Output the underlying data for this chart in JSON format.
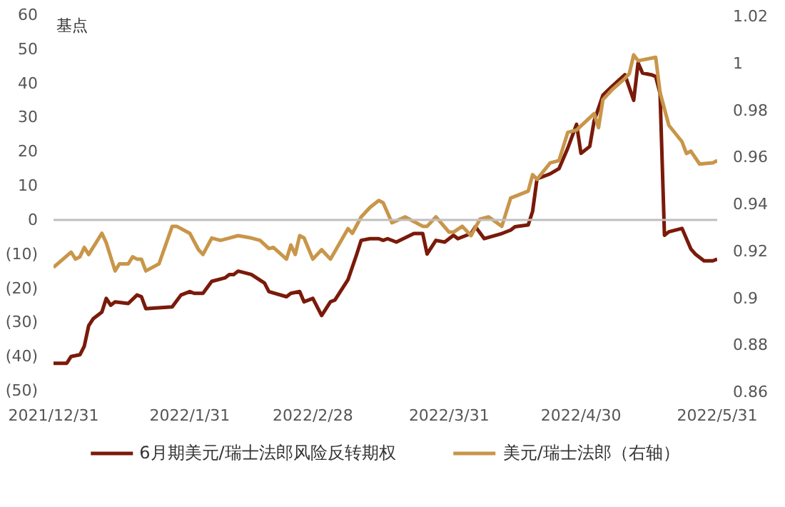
{
  "chart_data": {
    "type": "line",
    "ylabel": "基点",
    "legend": "bottom",
    "grid": false,
    "xlim": [
      "2021-12-31",
      "2022-05-31"
    ],
    "xticks": [
      {
        "value": "2021-12-31",
        "label": "2021/12/31"
      },
      {
        "value": "2022-01-31",
        "label": "2022/1/31"
      },
      {
        "value": "2022-02-28",
        "label": "2022/2/28"
      },
      {
        "value": "2022-03-31",
        "label": "2022/3/31"
      },
      {
        "value": "2022-04-30",
        "label": "2022/4/30"
      },
      {
        "value": "2022-05-31",
        "label": "2022/5/31"
      }
    ],
    "ylim": [
      -50,
      60
    ],
    "yticks": [
      {
        "value": -50,
        "label": "(50)"
      },
      {
        "value": -40,
        "label": "(40)"
      },
      {
        "value": -30,
        "label": "(30)"
      },
      {
        "value": -20,
        "label": "(20)"
      },
      {
        "value": -10,
        "label": "(10)"
      },
      0,
      10,
      20,
      30,
      40,
      50,
      60
    ],
    "y2lim": [
      0.86,
      1.02
    ],
    "y2ticks": [
      0.86,
      0.88,
      0.9,
      0.92,
      0.94,
      0.96,
      0.98,
      1,
      1.02
    ],
    "ref_lines": [
      {
        "axis": "y",
        "value": 0,
        "color": "#bfbfbf"
      }
    ],
    "series": [
      {
        "name": "6月期美元/瑞士法郎风险反转期权",
        "color": "#7a1a0a",
        "x": [
          "2021-12-31",
          "2022-01-03",
          "2022-01-04",
          "2022-01-06",
          "2022-01-07",
          "2022-01-08",
          "2022-01-09",
          "2022-01-11",
          "2022-01-12",
          "2022-01-13",
          "2022-01-14",
          "2022-01-17",
          "2022-01-19",
          "2022-01-20",
          "2022-01-21",
          "2022-01-27",
          "2022-01-29",
          "2022-01-31",
          "2022-02-01",
          "2022-02-03",
          "2022-02-05",
          "2022-02-08",
          "2022-02-09",
          "2022-02-10",
          "2022-02-11",
          "2022-02-14",
          "2022-02-17",
          "2022-02-18",
          "2022-02-22",
          "2022-02-23",
          "2022-02-25",
          "2022-02-26",
          "2022-02-28",
          "2022-03-02",
          "2022-03-04",
          "2022-03-05",
          "2022-03-08",
          "2022-03-10",
          "2022-03-11",
          "2022-03-13",
          "2022-03-15",
          "2022-03-16",
          "2022-03-17",
          "2022-03-19",
          "2022-03-23",
          "2022-03-25",
          "2022-03-26",
          "2022-03-28",
          "2022-03-30",
          "2022-04-01",
          "2022-04-02",
          "2022-04-05",
          "2022-04-06",
          "2022-04-08",
          "2022-04-12",
          "2022-04-14",
          "2022-04-15",
          "2022-04-18",
          "2022-04-19",
          "2022-04-20",
          "2022-04-23",
          "2022-04-25",
          "2022-04-27",
          "2022-04-29",
          "2022-04-30",
          "2022-05-02",
          "2022-05-03",
          "2022-05-05",
          "2022-05-07",
          "2022-05-10",
          "2022-05-12",
          "2022-05-13",
          "2022-05-14",
          "2022-05-16",
          "2022-05-17",
          "2022-05-18",
          "2022-05-19",
          "2022-05-20",
          "2022-05-23",
          "2022-05-25",
          "2022-05-26",
          "2022-05-28",
          "2022-05-30",
          "2022-05-31"
        ],
        "values": [
          -42,
          -42,
          -40,
          -39.5,
          -37,
          -31,
          -29,
          -27,
          -23,
          -25,
          -24,
          -24.5,
          -22,
          -22.5,
          -26,
          -25.5,
          -22,
          -21,
          -21.5,
          -21.5,
          -18,
          -17,
          -16,
          -16,
          -15,
          -16,
          -18.5,
          -21,
          -22.5,
          -21.5,
          -21,
          -24,
          -23,
          -28,
          -24,
          -23.5,
          -17.5,
          -10,
          -6,
          -5.5,
          -5.5,
          -6,
          -5.5,
          -6.5,
          -4,
          -4,
          -10,
          -6,
          -6.5,
          -4.5,
          -5.5,
          -4,
          -2,
          -5.5,
          -4,
          -3,
          -2,
          -1.5,
          2.5,
          12,
          13.5,
          15,
          21,
          28,
          19.5,
          21.5,
          29,
          36.5,
          39,
          42.5,
          35,
          46,
          43,
          42.5,
          42,
          37,
          -4.5,
          -3.5,
          -2.5,
          -8.5,
          -10,
          -12,
          -12,
          -11.5
        ]
      },
      {
        "name": "美元/瑞士法郎（右轴）",
        "color": "#c8964a",
        "axis": "y2",
        "x": [
          "2021-12-31",
          "2022-01-04",
          "2022-01-05",
          "2022-01-06",
          "2022-01-07",
          "2022-01-08",
          "2022-01-11",
          "2022-01-12",
          "2022-01-14",
          "2022-01-15",
          "2022-01-17",
          "2022-01-18",
          "2022-01-19",
          "2022-01-20",
          "2022-01-21",
          "2022-01-24",
          "2022-01-27",
          "2022-01-28",
          "2022-01-31",
          "2022-02-02",
          "2022-02-03",
          "2022-02-05",
          "2022-02-07",
          "2022-02-09",
          "2022-02-11",
          "2022-02-14",
          "2022-02-16",
          "2022-02-18",
          "2022-02-19",
          "2022-02-22",
          "2022-02-23",
          "2022-02-24",
          "2022-02-25",
          "2022-02-26",
          "2022-02-28",
          "2022-03-02",
          "2022-03-04",
          "2022-03-08",
          "2022-03-09",
          "2022-03-11",
          "2022-03-13",
          "2022-03-15",
          "2022-03-16",
          "2022-03-18",
          "2022-03-21",
          "2022-03-25",
          "2022-03-26",
          "2022-03-28",
          "2022-03-31",
          "2022-04-01",
          "2022-04-03",
          "2022-04-05",
          "2022-04-07",
          "2022-04-09",
          "2022-04-12",
          "2022-04-14",
          "2022-04-18",
          "2022-04-19",
          "2022-04-20",
          "2022-04-23",
          "2022-04-25",
          "2022-04-27",
          "2022-04-29",
          "2022-05-03",
          "2022-05-04",
          "2022-05-05",
          "2022-05-07",
          "2022-05-10",
          "2022-05-11",
          "2022-05-12",
          "2022-05-13",
          "2022-05-17",
          "2022-05-18",
          "2022-05-20",
          "2022-05-23",
          "2022-05-24",
          "2022-05-25",
          "2022-05-27",
          "2022-05-30",
          "2022-05-31"
        ],
        "values": [
          0.9125,
          0.919,
          0.916,
          0.917,
          0.921,
          0.918,
          0.927,
          0.923,
          0.911,
          0.914,
          0.914,
          0.917,
          0.916,
          0.916,
          0.911,
          0.914,
          0.93,
          0.93,
          0.927,
          0.92,
          0.918,
          0.925,
          0.924,
          0.925,
          0.926,
          0.925,
          0.924,
          0.9205,
          0.921,
          0.916,
          0.922,
          0.918,
          0.926,
          0.925,
          0.916,
          0.92,
          0.916,
          0.929,
          0.927,
          0.934,
          0.938,
          0.941,
          0.94,
          0.9315,
          0.934,
          0.93,
          0.93,
          0.934,
          0.9275,
          0.9275,
          0.93,
          0.926,
          0.933,
          0.934,
          0.93,
          0.942,
          0.945,
          0.952,
          0.95,
          0.957,
          0.958,
          0.97,
          0.971,
          0.978,
          0.972,
          0.984,
          0.988,
          0.993,
          0.995,
          1.003,
          1.0005,
          1.002,
          0.987,
          0.973,
          0.966,
          0.961,
          0.962,
          0.9565,
          0.957,
          0.958
        ]
      }
    ]
  }
}
